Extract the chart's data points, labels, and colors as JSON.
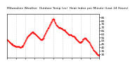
{
  "title": "Milwaukee Weather  Outdoor Temp (vs)  Heat Index per Minute (Last 24 Hours)",
  "line_color": "#ff0000",
  "bg_color": "#ffffff",
  "plot_bg_color": "#ffffff",
  "grid_color": "#b0b0b0",
  "ylim": [
    25,
    90
  ],
  "yticks": [
    30,
    35,
    40,
    45,
    50,
    55,
    60,
    65,
    70,
    75,
    80,
    85
  ],
  "line_style": "--",
  "line_width": 0.6,
  "marker": ".",
  "marker_size": 1.0,
  "x_values": [
    0,
    1,
    2,
    3,
    4,
    5,
    6,
    7,
    8,
    9,
    10,
    11,
    12,
    13,
    14,
    15,
    16,
    17,
    18,
    19,
    20,
    21,
    22,
    23,
    24,
    25,
    26,
    27,
    28,
    29,
    30,
    31,
    32,
    33,
    34,
    35,
    36,
    37,
    38,
    39,
    40,
    41,
    42,
    43,
    44,
    45,
    46,
    47,
    48,
    49,
    50,
    51,
    52,
    53,
    54,
    55,
    56,
    57,
    58,
    59,
    60,
    61,
    62,
    63,
    64,
    65,
    66,
    67,
    68,
    69,
    70,
    71,
    72,
    73,
    74,
    75,
    76,
    77,
    78,
    79,
    80,
    81,
    82,
    83,
    84,
    85,
    86,
    87,
    88,
    89,
    90,
    91,
    92,
    93,
    94,
    95,
    96,
    97,
    98,
    99,
    100,
    101,
    102,
    103,
    104,
    105,
    106,
    107,
    108,
    109,
    110,
    111,
    112,
    113,
    114,
    115,
    116,
    117,
    118,
    119,
    120,
    121,
    122,
    123,
    124,
    125,
    126,
    127,
    128,
    129,
    130,
    131,
    132,
    133,
    134,
    135,
    136,
    137,
    138,
    139,
    140
  ],
  "y_values": [
    52,
    51,
    50,
    49,
    48,
    47,
    46,
    46,
    45,
    44,
    44,
    43,
    43,
    42,
    42,
    41,
    41,
    41,
    41,
    40,
    40,
    40,
    41,
    42,
    43,
    44,
    46,
    48,
    50,
    52,
    54,
    56,
    57,
    58,
    59,
    60,
    61,
    62,
    63,
    63,
    62,
    61,
    61,
    60,
    59,
    58,
    57,
    56,
    55,
    54,
    53,
    52,
    52,
    52,
    53,
    54,
    56,
    58,
    60,
    62,
    64,
    66,
    68,
    70,
    72,
    74,
    76,
    78,
    80,
    82,
    83,
    82,
    80,
    78,
    76,
    74,
    73,
    72,
    71,
    70,
    70,
    70,
    69,
    68,
    67,
    66,
    66,
    66,
    65,
    64,
    63,
    62,
    61,
    60,
    59,
    59,
    59,
    59,
    58,
    57,
    57,
    57,
    56,
    55,
    54,
    53,
    52,
    51,
    50,
    49,
    48,
    48,
    48,
    49,
    50,
    52,
    53,
    54,
    54,
    54,
    53,
    52,
    51,
    50,
    49,
    48,
    46,
    44,
    42,
    40,
    38,
    36,
    35,
    34,
    33,
    32,
    31,
    30,
    29,
    29,
    28
  ],
  "xtick_interval": 14,
  "title_fontsize": 3.2,
  "tick_fontsize": 3.0
}
